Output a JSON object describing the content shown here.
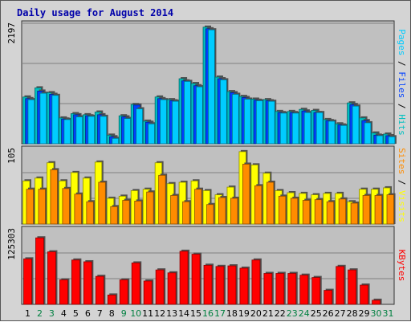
{
  "title": "Daily usage for August 2014",
  "colors": {
    "background": "#d4d4d4",
    "panel": "#c0c0c0",
    "hits": "#00c0c0",
    "files": "#0040ff",
    "pages": "#00ccff",
    "visits": "#ffff00",
    "sites": "#ff8c00",
    "kbytes": "#ff0000",
    "title": "#0000aa",
    "day_weekday": "#000000",
    "day_weekend": "#008040"
  },
  "chart_data": [
    {
      "type": "bar",
      "name": "hits-files-pages",
      "categories": [
        "1",
        "2",
        "3",
        "4",
        "5",
        "6",
        "7",
        "8",
        "9",
        "10",
        "11",
        "12",
        "13",
        "14",
        "15",
        "16",
        "17",
        "18",
        "19",
        "20",
        "21",
        "22",
        "23",
        "24",
        "25",
        "26",
        "27",
        "28",
        "29",
        "30",
        "31"
      ],
      "weekend_days": [
        "2",
        "3",
        "9",
        "10",
        "16",
        "17",
        "23",
        "24",
        "30",
        "31"
      ],
      "ymax": 2197,
      "ymax_label": "2197",
      "ylabel_parts": [
        {
          "text": "Pages",
          "color": "#00ccff"
        },
        {
          "text": " / ",
          "color": "#000000"
        },
        {
          "text": "Files",
          "color": "#0040ff"
        },
        {
          "text": " / ",
          "color": "#000000"
        },
        {
          "text": "Hits",
          "color": "#00c0c0"
        }
      ],
      "series": [
        {
          "name": "Hits",
          "values": [
            870,
            1040,
            950,
            480,
            560,
            540,
            590,
            160,
            520,
            730,
            420,
            870,
            820,
            1210,
            1120,
            2170,
            1240,
            970,
            880,
            830,
            820,
            600,
            600,
            640,
            620,
            450,
            370,
            760,
            480,
            200,
            180
          ]
        },
        {
          "name": "Files",
          "values": [
            840,
            980,
            920,
            460,
            540,
            520,
            540,
            130,
            500,
            720,
            400,
            840,
            800,
            1170,
            1080,
            2140,
            1210,
            950,
            860,
            810,
            800,
            580,
            580,
            610,
            580,
            430,
            350,
            730,
            430,
            160,
            150
          ]
        },
        {
          "name": "Pages",
          "values": [
            820,
            940,
            900,
            450,
            500,
            510,
            510,
            100,
            470,
            650,
            370,
            820,
            790,
            1160,
            1060,
            2120,
            1190,
            920,
            830,
            800,
            790,
            570,
            570,
            580,
            580,
            420,
            340,
            700,
            390,
            150,
            130
          ]
        }
      ]
    },
    {
      "type": "bar",
      "name": "visits-sites",
      "categories": [
        "1",
        "2",
        "3",
        "4",
        "5",
        "6",
        "7",
        "8",
        "9",
        "10",
        "11",
        "12",
        "13",
        "14",
        "15",
        "16",
        "17",
        "18",
        "19",
        "20",
        "21",
        "22",
        "23",
        "24",
        "25",
        "26",
        "27",
        "28",
        "29",
        "30",
        "31"
      ],
      "ymax": 105,
      "ymax_label": "105",
      "ylabel_parts": [
        {
          "text": "Sites",
          "color": "#ff8c00"
        },
        {
          "text": " / ",
          "color": "#000000"
        },
        {
          "text": "Visits",
          "color": "#ffff00"
        }
      ],
      "series": [
        {
          "name": "Visits",
          "values": [
            62,
            66,
            88,
            62,
            74,
            66,
            89,
            37,
            40,
            48,
            50,
            88,
            58,
            60,
            62,
            48,
            42,
            53,
            104,
            85,
            73,
            48,
            45,
            44,
            42,
            44,
            44,
            32,
            50,
            50,
            52
          ]
        },
        {
          "name": "Sites",
          "values": [
            50,
            50,
            78,
            51,
            43,
            32,
            60,
            25,
            34,
            33,
            46,
            70,
            41,
            32,
            50,
            28,
            38,
            37,
            86,
            55,
            60,
            40,
            37,
            34,
            35,
            32,
            36,
            30,
            41,
            41,
            42
          ]
        }
      ]
    },
    {
      "type": "bar",
      "name": "kbytes",
      "categories": [
        "1",
        "2",
        "3",
        "4",
        "5",
        "6",
        "7",
        "8",
        "9",
        "10",
        "11",
        "12",
        "13",
        "14",
        "15",
        "16",
        "17",
        "18",
        "19",
        "20",
        "21",
        "22",
        "23",
        "24",
        "25",
        "26",
        "27",
        "28",
        "29",
        "30",
        "31"
      ],
      "ymax": 125303,
      "ymax_label": "125303",
      "ylabel_parts": [
        {
          "text": "KBytes",
          "color": "#ff0000"
        }
      ],
      "series": [
        {
          "name": "KBytes",
          "values": [
            78000,
            114000,
            90000,
            42000,
            76000,
            73000,
            48000,
            16000,
            42000,
            71000,
            40000,
            59000,
            54000,
            91000,
            86000,
            67000,
            65000,
            66000,
            62000,
            76000,
            53000,
            53000,
            53000,
            50000,
            46000,
            24000,
            65000,
            59000,
            33000,
            7000,
            0
          ]
        }
      ]
    }
  ]
}
